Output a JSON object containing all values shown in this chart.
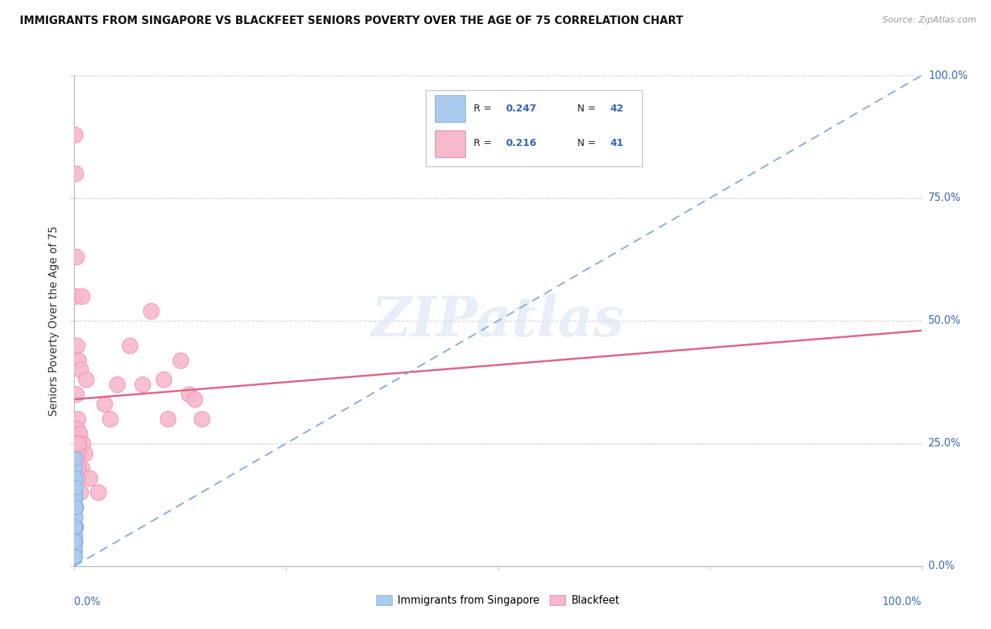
{
  "title": "IMMIGRANTS FROM SINGAPORE VS BLACKFEET SENIORS POVERTY OVER THE AGE OF 75 CORRELATION CHART",
  "source": "Source: ZipAtlas.com",
  "ylabel": "Seniors Poverty Over the Age of 75",
  "r_blue": 0.247,
  "n_blue": 42,
  "r_pink": 0.216,
  "n_pink": 41,
  "blue_fill": "#aaccee",
  "pink_fill": "#f8b8cc",
  "blue_edge": "#88aadd",
  "pink_edge": "#ee88aa",
  "trend_blue": "#88aadd",
  "trend_pink": "#dd6688",
  "label_blue": "Immigrants from Singapore",
  "label_pink": "Blackfeet",
  "blue_x": [
    0.05,
    0.08,
    0.12,
    0.15,
    0.18,
    0.06,
    0.09,
    0.03,
    0.02,
    0.14,
    0.22,
    0.04,
    0.07,
    0.11,
    0.03,
    0.06,
    0.02,
    0.04,
    0.09,
    0.12,
    0.03,
    0.06,
    0.02,
    0.07,
    0.04,
    0.1,
    0.03,
    0.06,
    0.09,
    0.04,
    0.02,
    0.07,
    0.03,
    0.06,
    0.12,
    0.04,
    0.08,
    0.02,
    0.05,
    0.03,
    0.07,
    0.11
  ],
  "blue_y": [
    18,
    3,
    5,
    8,
    12,
    15,
    10,
    20,
    22,
    14,
    8,
    2,
    4,
    6,
    7,
    10,
    2,
    4,
    12,
    8,
    5,
    14,
    2,
    10,
    4,
    18,
    5,
    8,
    16,
    2,
    3,
    5,
    2,
    4,
    10,
    5,
    8,
    2,
    4,
    2,
    5,
    12
  ],
  "pink_x": [
    0.08,
    0.15,
    0.25,
    0.12,
    0.32,
    0.5,
    0.2,
    0.7,
    0.9,
    0.4,
    0.3,
    0.1,
    0.6,
    1.0,
    1.2,
    1.4,
    0.85,
    0.35,
    0.5,
    1.8,
    2.8,
    3.5,
    4.2,
    5.0,
    6.5,
    8.0,
    9.0,
    10.5,
    11.0,
    12.5,
    13.5,
    14.2,
    15.0,
    0.16,
    0.32,
    0.25,
    0.5,
    0.3,
    0.75,
    0.36,
    0.11
  ],
  "pink_y": [
    88,
    80,
    63,
    55,
    45,
    42,
    35,
    40,
    55,
    30,
    28,
    22,
    27,
    25,
    23,
    38,
    20,
    20,
    23,
    18,
    15,
    33,
    30,
    37,
    45,
    37,
    52,
    38,
    30,
    42,
    35,
    34,
    30,
    15,
    25,
    22,
    25,
    18,
    15,
    18,
    12
  ],
  "xlim": [
    0,
    100
  ],
  "ylim": [
    0,
    100
  ],
  "yticks": [
    0,
    25,
    50,
    75,
    100
  ],
  "ytick_pct": [
    "0.0%",
    "25.0%",
    "50.0%",
    "75.0%",
    "100.0%"
  ],
  "xtick_left": "0.0%",
  "xtick_right": "100.0%",
  "pink_trend_x0": 0,
  "pink_trend_y0": 34,
  "pink_trend_x1": 100,
  "pink_trend_y1": 48,
  "blue_trend_x0": 0,
  "blue_trend_y0": 0,
  "blue_trend_x1": 100,
  "blue_trend_y1": 100
}
